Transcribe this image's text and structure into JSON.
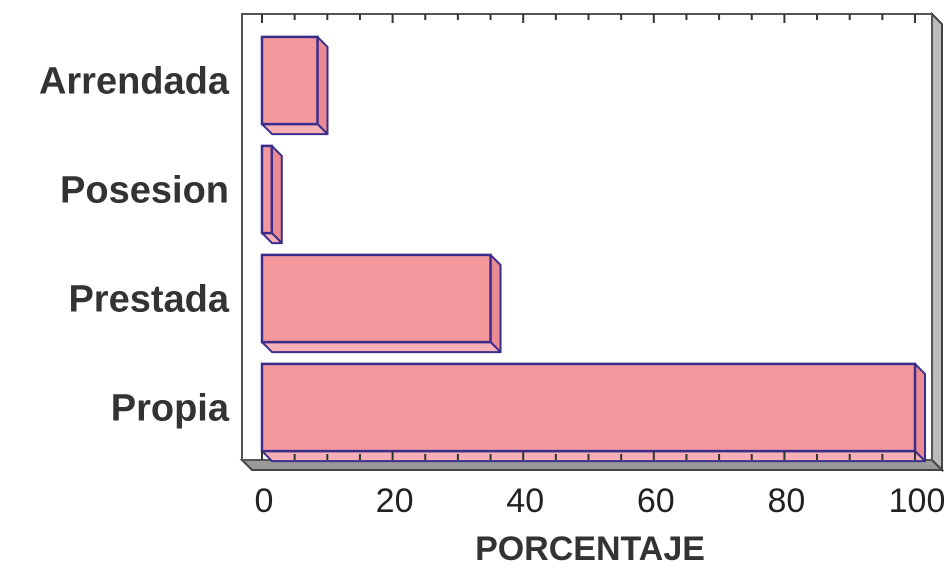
{
  "chart_data": {
    "type": "bar",
    "orientation": "horizontal",
    "title": "",
    "xlabel": "PORCENTAJE",
    "ylabel": "",
    "categories": [
      "Arrendada",
      "Posesion",
      "Prestada",
      "Propia"
    ],
    "values": [
      8.5,
      1.5,
      35,
      100
    ],
    "xlim": [
      0,
      100
    ],
    "xticks": [
      0,
      20,
      40,
      60,
      80,
      100
    ],
    "grid": false,
    "legend": "none",
    "style": "3d",
    "colors": {
      "bar_fill": "#F4989E",
      "bar_side": "#EA8A92",
      "bar_top": "#F6B0B6",
      "bar_outline": "#3A2E8C",
      "frame": "#555555",
      "floor": "#999999"
    }
  }
}
